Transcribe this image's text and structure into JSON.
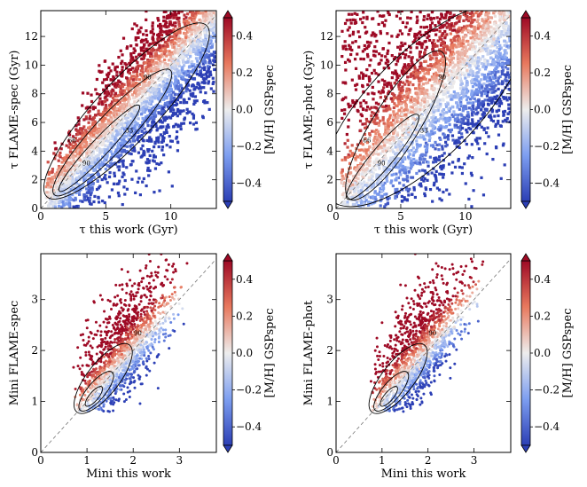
{
  "chart_data": [
    {
      "type": "scatter",
      "panel": "top-left",
      "xlabel": "τ this work (Gyr)",
      "ylabel": "τ FLAME-spec (Gyr)",
      "xlim": [
        0,
        13.5
      ],
      "ylim": [
        0,
        13.8
      ],
      "xticks": [
        0,
        5,
        10
      ],
      "yticks": [
        0,
        2,
        4,
        6,
        8,
        10,
        12
      ],
      "colorbar": {
        "label": "[M/H] GSPspec",
        "range": [
          -0.5,
          0.5
        ],
        "ticks": [
          0.4,
          0.2,
          0.0,
          -0.2,
          -0.4
        ],
        "tick_labels": [
          "0.4",
          "0.2",
          "0.0",
          "−0.2",
          "−0.4"
        ]
      },
      "contour_labels": [
        "90",
        "66",
        "33",
        "90"
      ],
      "diagonal": "one-to-one dashed line"
    },
    {
      "type": "scatter",
      "panel": "top-right",
      "xlabel": "τ this work (Gyr)",
      "ylabel": "τ FLAME-phot (Gyr)",
      "xlim": [
        0,
        13.5
      ],
      "ylim": [
        0,
        13.8
      ],
      "xticks": [
        0,
        5,
        10
      ],
      "yticks": [
        0,
        2,
        4,
        6,
        8,
        10,
        12
      ],
      "colorbar": {
        "label": "[M/H] GSPspec",
        "range": [
          -0.5,
          0.5
        ],
        "ticks": [
          0.4,
          0.2,
          0.0,
          -0.2,
          -0.4
        ],
        "tick_labels": [
          "0.4",
          "0.2",
          "0.0",
          "−0.2",
          "−0.4"
        ]
      },
      "contour_labels": [
        "90",
        "66",
        "33",
        "90"
      ],
      "diagonal": "one-to-one dashed line"
    },
    {
      "type": "scatter",
      "panel": "bottom-left",
      "xlabel": "Mini this work",
      "ylabel": "Mini FLAME-spec",
      "xlim": [
        0,
        3.8
      ],
      "ylim": [
        0,
        3.9
      ],
      "xticks": [
        0,
        1,
        2,
        3
      ],
      "yticks": [
        0,
        1,
        2,
        3
      ],
      "colorbar": {
        "label": "[M/H] GSPspec",
        "range": [
          -0.5,
          0.5
        ],
        "ticks": [
          0.4,
          0.2,
          0.0,
          -0.2,
          -0.4
        ],
        "tick_labels": [
          "0.4",
          "0.2",
          "0.0",
          "−0.2",
          "−0.4"
        ]
      },
      "contour_labels": [
        "90"
      ],
      "diagonal": "one-to-one dashed line"
    },
    {
      "type": "scatter",
      "panel": "bottom-right",
      "xlabel": "Mini this work",
      "ylabel": "Mini FLAME-phot",
      "xlim": [
        0,
        3.8
      ],
      "ylim": [
        0,
        3.9
      ],
      "xticks": [
        0,
        1,
        2,
        3
      ],
      "yticks": [
        0,
        1,
        2,
        3
      ],
      "colorbar": {
        "label": "[M/H] GSPspec",
        "range": [
          -0.5,
          0.5
        ],
        "ticks": [
          0.4,
          0.2,
          0.0,
          -0.2,
          -0.4
        ],
        "tick_labels": [
          "0.4",
          "0.2",
          "0.0",
          "−0.2",
          "−0.4"
        ]
      },
      "contour_labels": [
        "90"
      ],
      "diagonal": "one-to-one dashed line"
    }
  ],
  "colors": {
    "high": "#b2182b",
    "mid": "#f2f2f2",
    "low": "#2f4fc4",
    "contour": "#000000",
    "diagonal": "#777777"
  }
}
